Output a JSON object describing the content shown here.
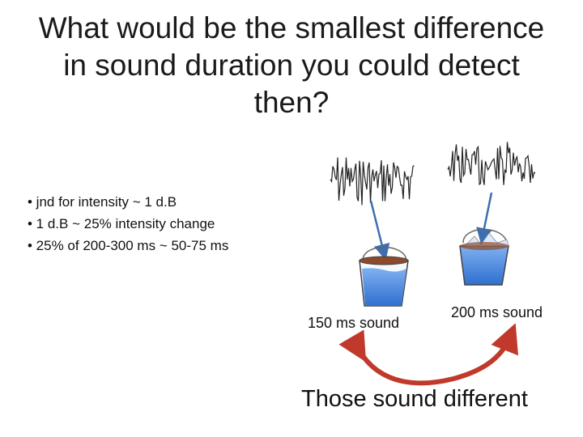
{
  "title": "What would be the smallest difference in sound duration you could detect then?",
  "bullets": [
    "• jnd for intensity ~ 1 d.B",
    "• 1 d.B ~ 25% intensity change",
    "• 25% of 200-300 ms ~ 50-75 ms"
  ],
  "labels": {
    "short_sound": "150 ms sound",
    "long_sound": "200 ms sound"
  },
  "conclusion": "Those sound different",
  "colors": {
    "arrow_red": "#c0392b",
    "water_blue": "#4a86e8",
    "pointer_blue": "#3d6fb0",
    "water_surface": "#8b4a2a"
  }
}
